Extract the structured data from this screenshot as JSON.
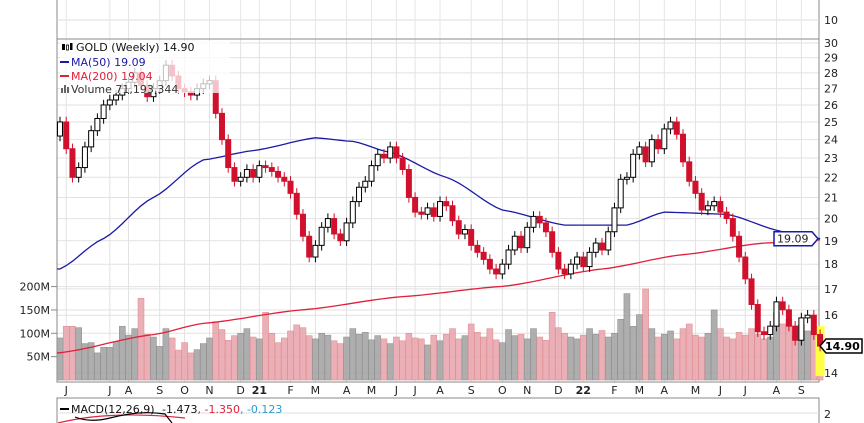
{
  "chart_data": {
    "type": "candlestick",
    "title": "GOLD (Weekly) 14.90",
    "symbol": "GOLD",
    "period": "Weekly",
    "last_price": "14.90",
    "legend": {
      "title": "GOLD (Weekly) 14.90",
      "ma50": "MA(50) 19.09",
      "ma200": "MA(200) 19.04",
      "volume": "Volume 71,193,344"
    },
    "price_axis": {
      "scale": "log",
      "ylim": [
        13.6,
        30.5
      ],
      "ticks": [
        "14",
        "16",
        "17",
        "18",
        "19",
        "20",
        "21",
        "22",
        "23",
        "24",
        "25",
        "26",
        "27",
        "28",
        "29",
        "30"
      ]
    },
    "volume_axis": {
      "ticks": [
        "50M",
        "100M",
        "150M",
        "200M"
      ],
      "tick_values": [
        50,
        100,
        150,
        200
      ],
      "unit": "M"
    },
    "upper_panel_tick": "10",
    "lower_panel_tick": "2",
    "ma50_tag": "19.09",
    "last_tag": "14.90",
    "months": [
      {
        "label": "J",
        "week": 1
      },
      {
        "label": "J",
        "week": 8
      },
      {
        "label": "A",
        "week": 11
      },
      {
        "label": "S",
        "week": 16
      },
      {
        "label": "O",
        "week": 20
      },
      {
        "label": "N",
        "week": 24
      },
      {
        "label": "D",
        "week": 29
      },
      {
        "label": "21",
        "week": 32,
        "bold": true
      },
      {
        "label": "F",
        "week": 37
      },
      {
        "label": "M",
        "week": 41
      },
      {
        "label": "A",
        "week": 46
      },
      {
        "label": "M",
        "week": 50
      },
      {
        "label": "J",
        "week": 54
      },
      {
        "label": "J",
        "week": 57
      },
      {
        "label": "A",
        "week": 61
      },
      {
        "label": "S",
        "week": 66
      },
      {
        "label": "O",
        "week": 71
      },
      {
        "label": "N",
        "week": 75
      },
      {
        "label": "D",
        "week": 80
      },
      {
        "label": "22",
        "week": 84,
        "bold": true
      },
      {
        "label": "F",
        "week": 89
      },
      {
        "label": "M",
        "week": 93
      },
      {
        "label": "A",
        "week": 97
      },
      {
        "label": "M",
        "week": 102
      },
      {
        "label": "J",
        "week": 106
      },
      {
        "label": "J",
        "week": 110
      },
      {
        "label": "A",
        "week": 115
      },
      {
        "label": "S",
        "week": 119
      }
    ],
    "close": [
      25.0,
      23.5,
      22.0,
      22.5,
      23.6,
      24.5,
      25.2,
      26.0,
      26.3,
      26.6,
      27.0,
      27.4,
      28.0,
      27.2,
      26.5,
      27.0,
      27.5,
      28.5,
      27.8,
      27.0,
      26.8,
      26.6,
      27.0,
      27.3,
      27.5,
      25.5,
      24.0,
      22.5,
      21.8,
      22.0,
      22.4,
      22.0,
      22.6,
      22.5,
      22.3,
      22.0,
      21.8,
      21.2,
      20.2,
      19.2,
      18.3,
      18.8,
      19.6,
      20.0,
      19.3,
      19.0,
      19.8,
      20.8,
      21.5,
      21.8,
      22.6,
      23.2,
      23.0,
      23.6,
      23.0,
      22.4,
      21.0,
      20.3,
      20.2,
      20.5,
      20.1,
      20.8,
      20.6,
      19.9,
      19.3,
      19.5,
      18.8,
      18.5,
      18.2,
      17.8,
      17.6,
      18.0,
      18.6,
      19.2,
      18.7,
      19.6,
      20.1,
      19.8,
      19.4,
      18.5,
      17.8,
      17.6,
      18.0,
      18.3,
      17.9,
      18.5,
      18.9,
      18.6,
      19.4,
      20.5,
      21.9,
      22.0,
      23.2,
      23.6,
      22.8,
      24.0,
      23.5,
      24.6,
      25.0,
      24.3,
      22.8,
      21.8,
      21.2,
      20.4,
      20.6,
      20.8,
      20.3,
      20.0,
      19.2,
      18.3,
      17.4,
      16.4,
      15.4,
      15.3,
      15.6,
      16.5,
      16.2,
      15.6,
      15.1,
      15.9,
      16.0,
      15.3,
      14.9
    ],
    "first_open": 24.2,
    "volume_m": [
      90,
      115,
      115,
      112,
      78,
      80,
      58,
      70,
      70,
      82,
      115,
      96,
      110,
      175,
      98,
      92,
      72,
      110,
      90,
      64,
      80,
      58,
      65,
      78,
      90,
      125,
      108,
      85,
      95,
      100,
      110,
      92,
      88,
      145,
      100,
      80,
      90,
      105,
      118,
      112,
      95,
      88,
      100,
      96,
      84,
      78,
      92,
      110,
      98,
      102,
      86,
      95,
      88,
      78,
      92,
      84,
      100,
      90,
      88,
      75,
      96,
      84,
      98,
      110,
      88,
      95,
      120,
      102,
      92,
      110,
      86,
      80,
      108,
      95,
      98,
      88,
      110,
      92,
      85,
      145,
      112,
      100,
      92,
      88,
      96,
      110,
      98,
      106,
      92,
      100,
      130,
      185,
      115,
      140,
      195,
      110,
      92,
      98,
      105,
      88,
      110,
      120,
      96,
      92,
      100,
      150,
      110,
      92,
      88,
      102,
      96,
      110,
      98,
      88,
      92,
      145,
      120,
      130,
      96,
      118,
      105,
      95,
      71
    ],
    "ma50": {
      "weeks": [
        0,
        7,
        15,
        23,
        31,
        41,
        47,
        53,
        62,
        71,
        81,
        91,
        97,
        107,
        116,
        122
      ],
      "values": [
        17.8,
        19.1,
        21.0,
        22.9,
        23.4,
        24.1,
        23.9,
        23.3,
        22.0,
        20.4,
        19.7,
        19.7,
        20.3,
        20.2,
        19.4,
        19.09
      ]
    },
    "ma200": {
      "weeks": [
        0,
        15,
        23,
        39,
        55,
        71,
        87,
        100,
        113,
        122
      ],
      "values": [
        14.67,
        15.3,
        15.7,
        16.2,
        16.7,
        17.1,
        17.8,
        18.4,
        18.9,
        19.04
      ]
    },
    "macd": {
      "label": "MACD(12,26,9)",
      "macd": "-1.473",
      "signal": ", -1.350",
      "hist": ", -0.123"
    },
    "colors": {
      "up": "#000000",
      "down": "#d0102c",
      "ma50": "#1a1aa6",
      "ma200": "#e0203c",
      "vol_up": "#a6a6a6",
      "vol_down": "#e9a7b0",
      "hist": "#2a9ad8",
      "highlight": "#ffff44"
    }
  }
}
